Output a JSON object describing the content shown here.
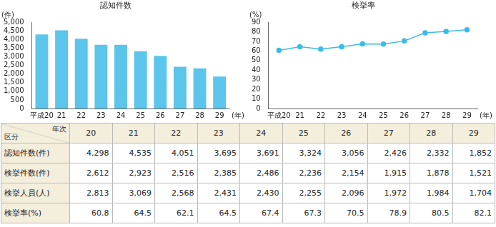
{
  "chart_data": [
    {
      "type": "bar",
      "title": "認知件数",
      "y_label": "(件)",
      "x_label": "(年)",
      "categories": [
        "平成20",
        "21",
        "22",
        "23",
        "24",
        "25",
        "26",
        "27",
        "28",
        "29"
      ],
      "values": [
        4298,
        4535,
        4051,
        3695,
        3691,
        3324,
        3056,
        2426,
        2332,
        1852
      ],
      "color": "#5cc5ec",
      "ylim": [
        0,
        5000
      ],
      "yticks": [
        0,
        500,
        {
          "value": 1000,
          "label": "1,000"
        },
        {
          "value": 1500,
          "label": "1,500"
        },
        {
          "value": 2000,
          "label": "2,000"
        },
        {
          "value": 2500,
          "label": "2,500"
        },
        {
          "value": 3000,
          "label": "3,000"
        },
        {
          "value": 3500,
          "label": "3,500"
        },
        {
          "value": 4000,
          "label": "4,000"
        },
        {
          "value": 4500,
          "label": "4,500"
        },
        {
          "value": 5000,
          "label": "5,000"
        }
      ],
      "grid": false
    },
    {
      "type": "line",
      "title": "検挙率",
      "y_label": "(%)",
      "x_label": "(年)",
      "categories": [
        "平成20",
        "21",
        "22",
        "23",
        "24",
        "25",
        "26",
        "27",
        "28",
        "29"
      ],
      "values": [
        60.8,
        64.5,
        62.1,
        64.5,
        67.4,
        67.3,
        70.5,
        78.9,
        80.5,
        82.1
      ],
      "color": "#3dbbe8",
      "marker": "circle",
      "ylim": [
        0,
        90
      ],
      "yticks": [
        0,
        10,
        20,
        30,
        40,
        50,
        60,
        70,
        80,
        90
      ],
      "grid": false
    }
  ],
  "table": {
    "corner": {
      "column_header": "年次",
      "row_header": "区分"
    },
    "columns": [
      "20",
      "21",
      "22",
      "23",
      "24",
      "25",
      "26",
      "27",
      "28",
      "29"
    ],
    "rows": [
      {
        "label": "認知件数(件)",
        "cells": [
          "4,298",
          "4,535",
          "4,051",
          "3,695",
          "3,691",
          "3,324",
          "3,056",
          "2,426",
          "2,332",
          "1,852"
        ]
      },
      {
        "label": "検挙件数(件)",
        "cells": [
          "2,612",
          "2,923",
          "2,516",
          "2,385",
          "2,486",
          "2,236",
          "2,154",
          "1,915",
          "1,878",
          "1,521"
        ]
      },
      {
        "label": "検挙人員(人)",
        "cells": [
          "2,813",
          "3,069",
          "2,568",
          "2,431",
          "2,430",
          "2,255",
          "2,096",
          "1,972",
          "1,984",
          "1,704"
        ]
      },
      {
        "label": "検挙率(%)",
        "cells": [
          "60.8",
          "64.5",
          "62.1",
          "64.5",
          "67.4",
          "67.3",
          "70.5",
          "78.9",
          "80.5",
          "82.1"
        ]
      }
    ]
  }
}
